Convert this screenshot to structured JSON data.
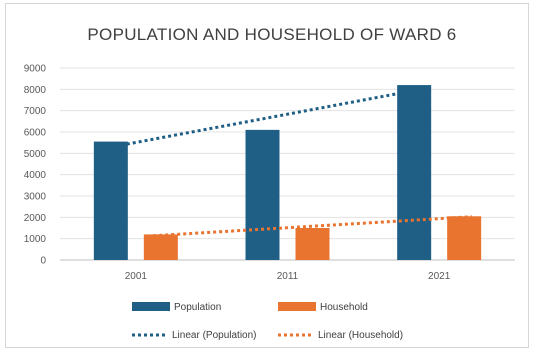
{
  "chart_data": {
    "type": "bar",
    "title": "POPULATION AND HOUSEHOLD OF WARD 6",
    "categories": [
      "2001",
      "2011",
      "2021"
    ],
    "series": [
      {
        "name": "Population",
        "values": [
          5550,
          6100,
          8200
        ],
        "color": "#1f5f86"
      },
      {
        "name": "Household",
        "values": [
          1200,
          1500,
          2050
        ],
        "color": "#e8742f"
      }
    ],
    "trendlines": [
      {
        "name": "Linear (Population)",
        "series": "Population",
        "color": "#1f5f86"
      },
      {
        "name": "Linear (Household)",
        "series": "Household",
        "color": "#e8742f"
      }
    ],
    "ylim": [
      0,
      9000
    ],
    "yticks": [
      "0",
      "1000",
      "2000",
      "3000",
      "4000",
      "5000",
      "6000",
      "7000",
      "8000",
      "9000"
    ],
    "grid": true,
    "legend_position": "bottom"
  }
}
